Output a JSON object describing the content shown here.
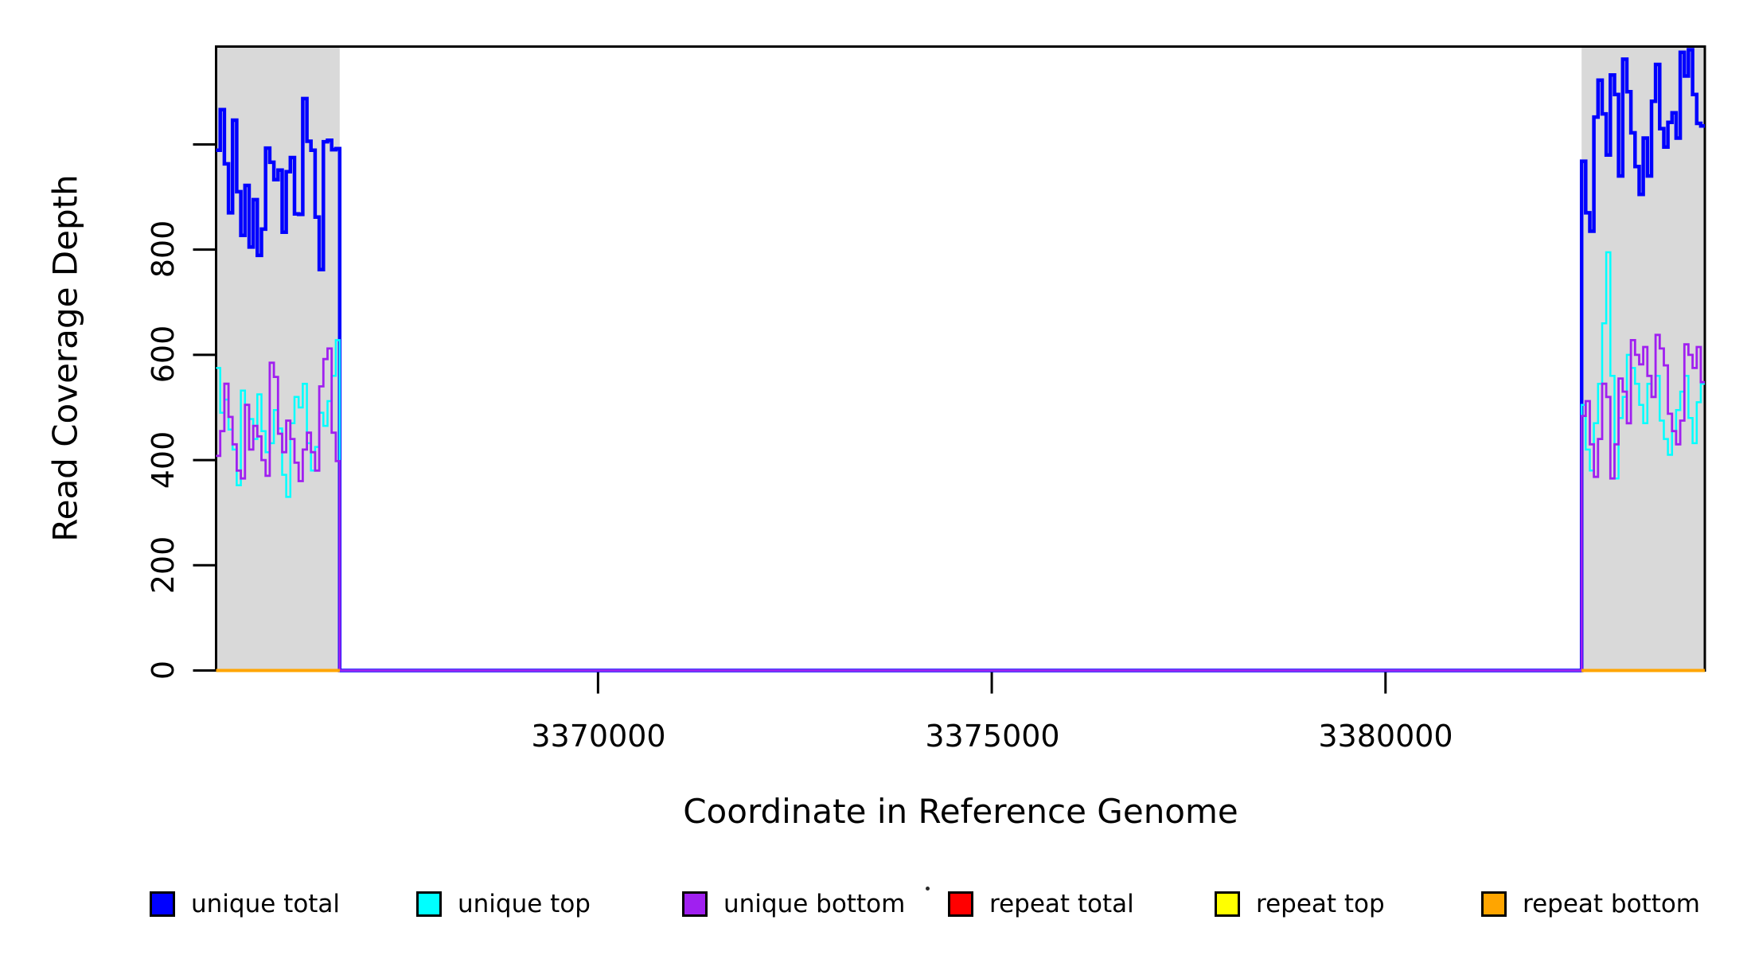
{
  "chart_data": {
    "type": "line",
    "subtype": "step-coverage-plot",
    "title": "",
    "xlabel": "Coordinate in Reference Genome",
    "ylabel": "Read Coverage Depth",
    "xlim": [
      3365150,
      3384055
    ],
    "ylim": [
      0,
      1186
    ],
    "x_ticks": [
      3370000,
      3375000,
      3380000
    ],
    "x_tick_labels": [
      "3370000",
      "3375000",
      "3380000"
    ],
    "y_ticks": [
      0,
      200,
      400,
      600,
      800,
      1000
    ],
    "y_tick_labels": [
      "0",
      "200",
      "400",
      "600",
      "800",
      ""
    ],
    "grid": false,
    "legend_position": "bottom-horizontal",
    "region_color": "#D9D9D9",
    "shaded_regions": [
      {
        "x_start": 3365150,
        "x_end": 3366720
      },
      {
        "x_start": 3382490,
        "x_end": 3384055
      }
    ],
    "series": [
      {
        "name": "unique total",
        "color": "#0000FF",
        "width": 4.5,
        "connected": true,
        "segments": [
          {
            "x0": 3365150,
            "dx": 52.4,
            "xend": 3366720,
            "values": [
              989,
              1066,
              963,
              870,
              1046,
              910,
              827,
              922,
              805,
              895,
              789,
              839,
              993,
              966,
              933,
              951,
              833,
              948,
              975,
              868,
              867,
              1087,
              1006,
              989,
              862,
              762,
              1005,
              1008,
              990,
              992
            ]
          },
          {
            "x0": 3366720,
            "dx": 15770,
            "xend": 3382490,
            "values": [
              0
            ]
          },
          {
            "x0": 3382490,
            "dx": 52.2,
            "xend": 3384055,
            "values": [
              968,
              870,
              835,
              1052,
              1122,
              1058,
              980,
              1132,
              1095,
              940,
              1162,
              1100,
              1022,
              958,
              905,
              1012,
              940,
              1082,
              1152,
              1030,
              995,
              1042,
              1060,
              1012,
              1175,
              1130,
              1180,
              1095,
              1040,
              1035
            ]
          }
        ]
      },
      {
        "name": "unique top",
        "color": "#00FFFF",
        "width": 2.5,
        "connected": true,
        "segments": [
          {
            "x0": 3365150,
            "dx": 52.4,
            "xend": 3366720,
            "values": [
              575,
              490,
              515,
              458,
              420,
              352,
              532,
              505,
              478,
              440,
              525,
              455,
              415,
              432,
              495,
              460,
              372,
              330,
              470,
              520,
              500,
              545,
              432,
              380,
              425,
              490,
              465,
              512,
              560,
              628
            ]
          },
          {
            "x0": 3366720,
            "dx": 15770,
            "xend": 3382490,
            "values": [
              0
            ]
          },
          {
            "x0": 3382490,
            "dx": 52.2,
            "xend": 3384055,
            "values": [
              505,
              420,
              380,
              470,
              545,
              660,
              795,
              560,
              365,
              480,
              520,
              600,
              575,
              545,
              505,
              470,
              545,
              520,
              560,
              475,
              440,
              410,
              455,
              495,
              530,
              560,
              480,
              432,
              510,
              545
            ]
          }
        ]
      },
      {
        "name": "unique bottom",
        "color": "#A020F0",
        "width": 2.8,
        "connected": true,
        "segments": [
          {
            "x0": 3365150,
            "dx": 52.4,
            "xend": 3366720,
            "values": [
              408,
              455,
              545,
              482,
              430,
              380,
              365,
              505,
              420,
              465,
              445,
              400,
              370,
              585,
              558,
              450,
              415,
              475,
              440,
              395,
              360,
              420,
              452,
              415,
              380,
              540,
              592,
              612,
              452,
              398
            ]
          },
          {
            "x0": 3366720,
            "dx": 15770,
            "xend": 3382490,
            "values": [
              0
            ]
          },
          {
            "x0": 3382490,
            "dx": 52.2,
            "xend": 3384055,
            "values": [
              484,
              512,
              430,
              368,
              440,
              545,
              520,
              365,
              430,
              555,
              530,
              470,
              628,
              600,
              582,
              615,
              560,
              520,
              638,
              612,
              580,
              488,
              455,
              430,
              475,
              620,
              600,
              575,
              615,
              548
            ]
          }
        ]
      },
      {
        "name": "repeat total",
        "color": "#FF0000",
        "width": 2.5,
        "connected": false,
        "segments": [
          {
            "x0": 3365150,
            "dx": 1570,
            "xend": 3366720,
            "values": [
              0
            ]
          },
          {
            "x0": 3382490,
            "dx": 1565,
            "xend": 3384055,
            "values": [
              0
            ]
          }
        ]
      },
      {
        "name": "repeat top",
        "color": "#FFFF00",
        "width": 2.5,
        "connected": false,
        "segments": [
          {
            "x0": 3365150,
            "dx": 1570,
            "xend": 3366720,
            "values": [
              0
            ]
          },
          {
            "x0": 3382490,
            "dx": 1565,
            "xend": 3384055,
            "values": [
              0
            ]
          }
        ]
      },
      {
        "name": "repeat bottom",
        "color": "#FFA500",
        "width": 4,
        "connected": false,
        "segments": [
          {
            "x0": 3365150,
            "dx": 1570,
            "xend": 3366720,
            "values": [
              0
            ]
          },
          {
            "x0": 3382490,
            "dx": 1565,
            "xend": 3384055,
            "values": [
              0
            ]
          }
        ]
      }
    ]
  },
  "legend": {
    "items": [
      {
        "label": "unique total",
        "color": "#0000FF"
      },
      {
        "label": "unique top",
        "color": "#00FFFF"
      },
      {
        "label": "unique bottom",
        "color": "#A020F0"
      },
      {
        "label": "repeat total",
        "color": "#FF0000"
      },
      {
        "label": "repeat top",
        "color": "#FFFF00"
      },
      {
        "label": "repeat bottom",
        "color": "#FFA500"
      }
    ]
  }
}
